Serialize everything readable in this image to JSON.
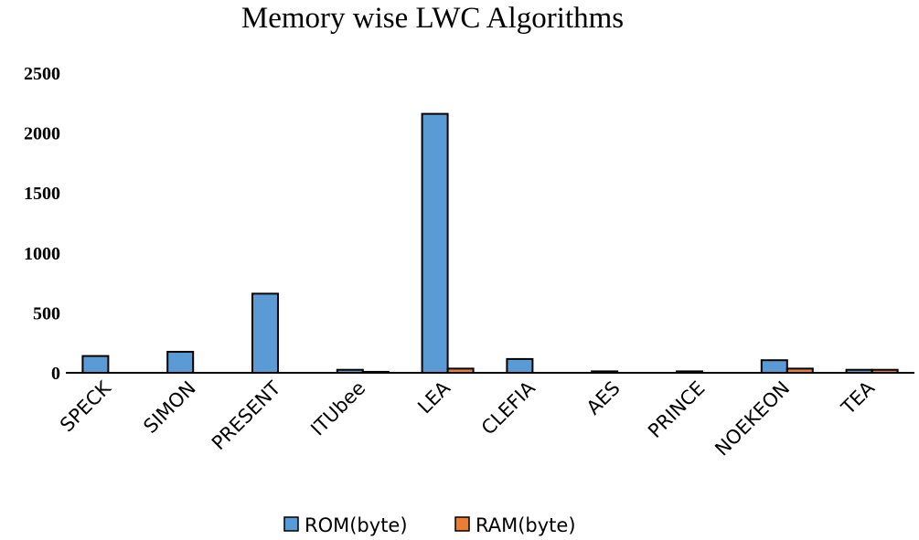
{
  "chart_data": {
    "type": "bar",
    "title": "Memory wise LWC Algorithms",
    "xlabel": "",
    "ylabel": "",
    "ylim": [
      0,
      2500
    ],
    "yticks": [
      0,
      500,
      1000,
      1500,
      2000,
      2500
    ],
    "categories": [
      "SPECK",
      "SIMON",
      "PRESENT",
      "ITUbee",
      "LEA",
      "CLEFIA",
      "AES",
      "PRINCE",
      "NOEKEON",
      "TEA"
    ],
    "series": [
      {
        "name": "ROM(byte)",
        "color": "#5b9bd5",
        "values": [
          140,
          175,
          660,
          25,
          2160,
          115,
          12,
          12,
          105,
          25
        ]
      },
      {
        "name": "RAM(byte)",
        "color": "#ed7d31",
        "values": [
          0,
          0,
          0,
          8,
          35,
          0,
          0,
          0,
          35,
          25
        ]
      }
    ],
    "legend": "bottom",
    "grid": false
  }
}
